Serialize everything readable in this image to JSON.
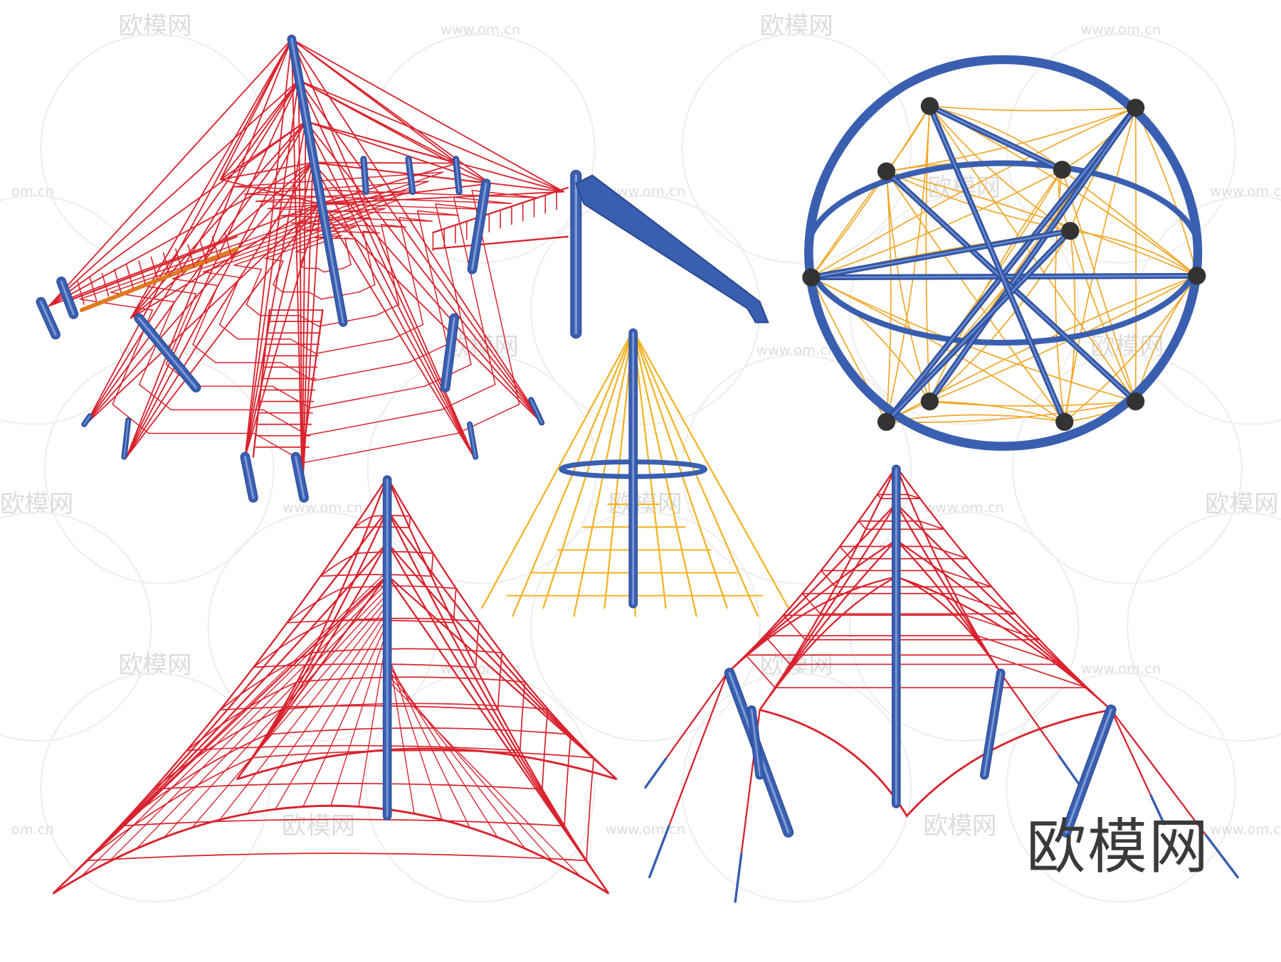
{
  "watermark": {
    "logo_text": "欧模网",
    "url_text": "www.om.cn",
    "url_partial": "om.cn"
  },
  "brand_mark": "欧模网",
  "colors": {
    "net_red": "#d9232e",
    "net_yellow": "#f0a82a",
    "pole_blue": "#3a5fb0",
    "watermark_gray": "#dcdcdc",
    "background": "#ffffff"
  },
  "subjects": [
    "star-net-with-bridges-and-slide",
    "space-net-sphere",
    "yellow-cone-net",
    "red-pyramid-net",
    "red-four-pole-net"
  ]
}
